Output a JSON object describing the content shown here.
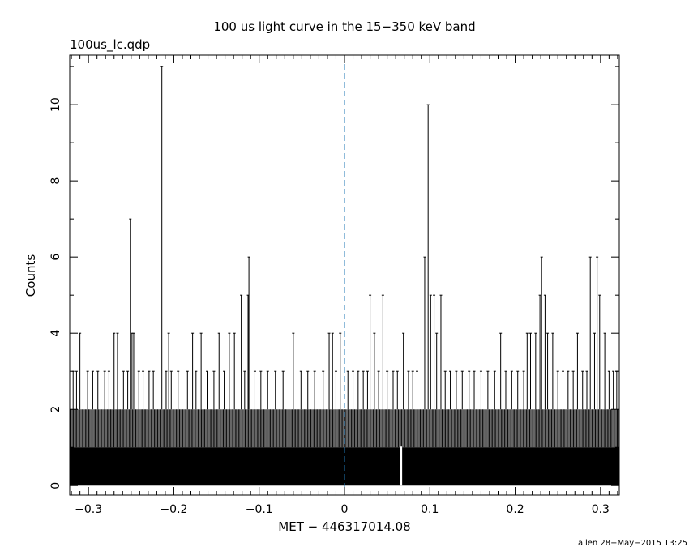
{
  "chart_data": {
    "type": "bar",
    "title": "100 us light curve in the 15−350 keV band",
    "subtitle": "100us_lc.qdp",
    "xlabel": "MET − 446317014.08",
    "ylabel": "Counts",
    "footer": "allen 28−May−2015 13:25",
    "xlim": [
      -0.322,
      0.322
    ],
    "ylim": [
      -0.25,
      11.3
    ],
    "bin_width": 0.0001,
    "x_ticks": [
      {
        "value": -0.3,
        "label": "−0.3"
      },
      {
        "value": -0.2,
        "label": "−0.2"
      },
      {
        "value": -0.1,
        "label": "−0.1"
      },
      {
        "value": 0,
        "label": "0"
      },
      {
        "value": 0.1,
        "label": "0.1"
      },
      {
        "value": 0.2,
        "label": "0.2"
      },
      {
        "value": 0.3,
        "label": "0.3"
      }
    ],
    "y_ticks": [
      {
        "value": 0,
        "label": "0"
      },
      {
        "value": 2,
        "label": "2"
      },
      {
        "value": 4,
        "label": "4"
      },
      {
        "value": 6,
        "label": "6"
      },
      {
        "value": 8,
        "label": "8"
      },
      {
        "value": 10,
        "label": "10"
      }
    ],
    "trigger_line": {
      "x": 0,
      "color": "#1f77b4",
      "style": "dashed"
    },
    "baseline_level": 1,
    "band_level": 2,
    "band_range": [
      -0.322,
      0.322
    ],
    "peaks": [
      {
        "x": -0.318,
        "y": 3
      },
      {
        "x": -0.314,
        "y": 3
      },
      {
        "x": -0.31,
        "y": 4
      },
      {
        "x": -0.301,
        "y": 3
      },
      {
        "x": -0.295,
        "y": 3
      },
      {
        "x": -0.289,
        "y": 3
      },
      {
        "x": -0.281,
        "y": 3
      },
      {
        "x": -0.276,
        "y": 3
      },
      {
        "x": -0.27,
        "y": 4
      },
      {
        "x": -0.266,
        "y": 4
      },
      {
        "x": -0.259,
        "y": 3
      },
      {
        "x": -0.254,
        "y": 3
      },
      {
        "x": -0.251,
        "y": 7
      },
      {
        "x": -0.249,
        "y": 4
      },
      {
        "x": -0.247,
        "y": 4
      },
      {
        "x": -0.241,
        "y": 3
      },
      {
        "x": -0.236,
        "y": 3
      },
      {
        "x": -0.229,
        "y": 3
      },
      {
        "x": -0.224,
        "y": 3
      },
      {
        "x": -0.214,
        "y": 11
      },
      {
        "x": -0.209,
        "y": 3
      },
      {
        "x": -0.206,
        "y": 4
      },
      {
        "x": -0.203,
        "y": 3
      },
      {
        "x": -0.195,
        "y": 3
      },
      {
        "x": -0.184,
        "y": 3
      },
      {
        "x": -0.178,
        "y": 4
      },
      {
        "x": -0.174,
        "y": 3
      },
      {
        "x": -0.168,
        "y": 4
      },
      {
        "x": -0.161,
        "y": 3
      },
      {
        "x": -0.153,
        "y": 3
      },
      {
        "x": -0.147,
        "y": 4
      },
      {
        "x": -0.141,
        "y": 3
      },
      {
        "x": -0.135,
        "y": 4
      },
      {
        "x": -0.129,
        "y": 4
      },
      {
        "x": -0.121,
        "y": 5
      },
      {
        "x": -0.117,
        "y": 3
      },
      {
        "x": -0.113,
        "y": 5
      },
      {
        "x": -0.112,
        "y": 6
      },
      {
        "x": -0.105,
        "y": 3
      },
      {
        "x": -0.098,
        "y": 3
      },
      {
        "x": -0.09,
        "y": 3
      },
      {
        "x": -0.081,
        "y": 3
      },
      {
        "x": -0.072,
        "y": 3
      },
      {
        "x": -0.06,
        "y": 4
      },
      {
        "x": -0.051,
        "y": 3
      },
      {
        "x": -0.043,
        "y": 3
      },
      {
        "x": -0.035,
        "y": 3
      },
      {
        "x": -0.025,
        "y": 3
      },
      {
        "x": -0.018,
        "y": 4
      },
      {
        "x": -0.014,
        "y": 4
      },
      {
        "x": -0.01,
        "y": 3
      },
      {
        "x": -0.005,
        "y": 4
      },
      {
        "x": 0.004,
        "y": 3
      },
      {
        "x": 0.01,
        "y": 3
      },
      {
        "x": 0.016,
        "y": 3
      },
      {
        "x": 0.022,
        "y": 3
      },
      {
        "x": 0.027,
        "y": 3
      },
      {
        "x": 0.03,
        "y": 5
      },
      {
        "x": 0.035,
        "y": 4
      },
      {
        "x": 0.04,
        "y": 3
      },
      {
        "x": 0.045,
        "y": 5
      },
      {
        "x": 0.05,
        "y": 3
      },
      {
        "x": 0.057,
        "y": 3
      },
      {
        "x": 0.062,
        "y": 3
      },
      {
        "x": 0.069,
        "y": 4
      },
      {
        "x": 0.075,
        "y": 3
      },
      {
        "x": 0.08,
        "y": 3
      },
      {
        "x": 0.085,
        "y": 3
      },
      {
        "x": 0.094,
        "y": 6
      },
      {
        "x": 0.098,
        "y": 10
      },
      {
        "x": 0.101,
        "y": 5
      },
      {
        "x": 0.105,
        "y": 5
      },
      {
        "x": 0.108,
        "y": 4
      },
      {
        "x": 0.113,
        "y": 5
      },
      {
        "x": 0.118,
        "y": 3
      },
      {
        "x": 0.124,
        "y": 3
      },
      {
        "x": 0.131,
        "y": 3
      },
      {
        "x": 0.138,
        "y": 3
      },
      {
        "x": 0.146,
        "y": 3
      },
      {
        "x": 0.152,
        "y": 3
      },
      {
        "x": 0.16,
        "y": 3
      },
      {
        "x": 0.168,
        "y": 3
      },
      {
        "x": 0.176,
        "y": 3
      },
      {
        "x": 0.183,
        "y": 4
      },
      {
        "x": 0.189,
        "y": 3
      },
      {
        "x": 0.196,
        "y": 3
      },
      {
        "x": 0.203,
        "y": 3
      },
      {
        "x": 0.21,
        "y": 3
      },
      {
        "x": 0.214,
        "y": 4
      },
      {
        "x": 0.218,
        "y": 4
      },
      {
        "x": 0.224,
        "y": 4
      },
      {
        "x": 0.229,
        "y": 5
      },
      {
        "x": 0.231,
        "y": 6
      },
      {
        "x": 0.235,
        "y": 5
      },
      {
        "x": 0.238,
        "y": 4
      },
      {
        "x": 0.244,
        "y": 4
      },
      {
        "x": 0.25,
        "y": 3
      },
      {
        "x": 0.256,
        "y": 3
      },
      {
        "x": 0.262,
        "y": 3
      },
      {
        "x": 0.268,
        "y": 3
      },
      {
        "x": 0.273,
        "y": 4
      },
      {
        "x": 0.279,
        "y": 3
      },
      {
        "x": 0.284,
        "y": 3
      },
      {
        "x": 0.288,
        "y": 6
      },
      {
        "x": 0.293,
        "y": 4
      },
      {
        "x": 0.296,
        "y": 6
      },
      {
        "x": 0.299,
        "y": 5
      },
      {
        "x": 0.305,
        "y": 4
      },
      {
        "x": 0.31,
        "y": 3
      },
      {
        "x": 0.315,
        "y": 3
      },
      {
        "x": 0.319,
        "y": 3
      }
    ],
    "zero_bins": [
      {
        "x": 0.066
      },
      {
        "x": 0.067
      }
    ]
  }
}
